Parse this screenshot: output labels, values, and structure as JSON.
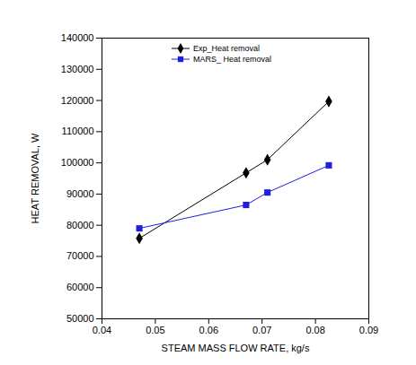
{
  "chart_data": {
    "type": "line",
    "x_label": "STEAM MASS FLOW RATE, kg/s",
    "y_label": "HEAT REMOVAL, W",
    "x": [
      0.047,
      0.067,
      0.071,
      0.0825
    ],
    "series": [
      {
        "name": "Exp_Heat removal",
        "color": "#000000",
        "marker": "diamond",
        "values": [
          75800,
          96800,
          101000,
          119700
        ]
      },
      {
        "name": "MARS_ Heat removal",
        "color": "#1f1fe0",
        "marker": "square",
        "values": [
          79000,
          86500,
          90500,
          99200
        ]
      }
    ],
    "xlim": [
      0.04,
      0.09
    ],
    "xticks": [
      0.04,
      0.05,
      0.06,
      0.07,
      0.08,
      0.09
    ],
    "ylim": [
      50000,
      140000
    ],
    "yticks": [
      50000,
      60000,
      70000,
      80000,
      90000,
      100000,
      110000,
      120000,
      130000,
      140000
    ],
    "grid": false,
    "legend": "top-left"
  }
}
